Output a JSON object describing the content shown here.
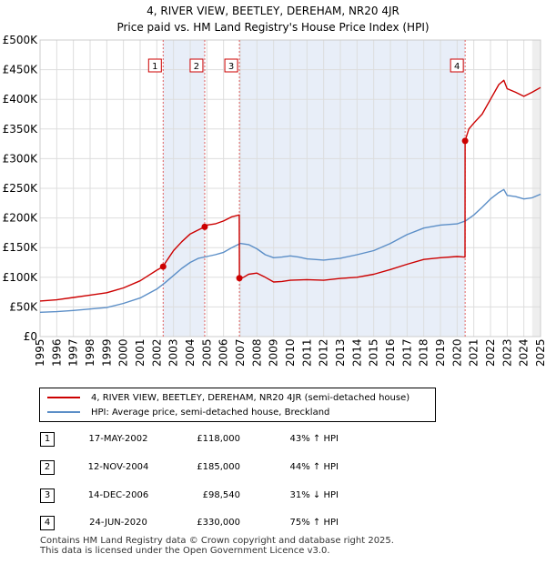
{
  "title_line1": "4, RIVER VIEW, BEETLEY, DEREHAM, NR20 4JR",
  "title_line2": "Price paid vs. HM Land Registry's House Price Index (HPI)",
  "colors": {
    "property": "#cc0000",
    "hpi": "#5b8ec7",
    "grid": "#dddddd",
    "shade": "#e8eef8",
    "vline": "#e06060"
  },
  "chart_data": {
    "type": "line",
    "title": "Price paid vs. HM Land Registry's House Price Index (HPI)",
    "xlim": [
      1995,
      2025
    ],
    "ylim": [
      0,
      500000
    ],
    "y_ticks": [
      0,
      50000,
      100000,
      150000,
      200000,
      250000,
      300000,
      350000,
      400000,
      450000,
      500000
    ],
    "y_tick_labels": [
      "£0",
      "£50K",
      "£100K",
      "£150K",
      "£200K",
      "£250K",
      "£300K",
      "£350K",
      "£400K",
      "£450K",
      "£500K"
    ],
    "x_ticks": [
      1995,
      1996,
      1997,
      1998,
      1999,
      2000,
      2001,
      2002,
      2003,
      2004,
      2005,
      2006,
      2007,
      2008,
      2009,
      2010,
      2011,
      2012,
      2013,
      2014,
      2015,
      2016,
      2017,
      2018,
      2019,
      2020,
      2021,
      2022,
      2023,
      2024,
      2025
    ],
    "x_tick_labels": [
      "1995",
      "1996",
      "1997",
      "1998",
      "1999",
      "2000",
      "2001",
      "2002",
      "2003",
      "2004",
      "2005",
      "2006",
      "2007",
      "2008",
      "2009",
      "2010",
      "2011",
      "2012",
      "2013",
      "2014",
      "2015",
      "2016",
      "2017",
      "2018",
      "2019",
      "2020",
      "2021",
      "2022",
      "2023",
      "2024",
      "2025"
    ],
    "series": [
      {
        "name": "4, RIVER VIEW, BEETLEY, DEREHAM, NR20 4JR (semi-detached house)",
        "x": [
          1995,
          1996,
          1997,
          1998,
          1999,
          2000,
          2001,
          2001.5,
          2002,
          2002.38,
          2002.5,
          2003,
          2003.5,
          2004,
          2004.5,
          2004.87,
          2005,
          2005.5,
          2006,
          2006.5,
          2006.94,
          2006.95,
          2007.2,
          2007.5,
          2008,
          2008.5,
          2009,
          2009.5,
          2010,
          2011,
          2012,
          2013,
          2014,
          2015,
          2016,
          2017,
          2018,
          2019,
          2020,
          2020.47,
          2020.48,
          2020.7,
          2021,
          2021.5,
          2022,
          2022.5,
          2022.8,
          2023,
          2023.5,
          2024,
          2024.5,
          2025
        ],
        "values": [
          60000,
          62000,
          66000,
          70000,
          74000,
          82000,
          94000,
          103000,
          112000,
          118000,
          124000,
          145000,
          160000,
          173000,
          180000,
          185000,
          188000,
          190000,
          195000,
          202000,
          205000,
          98540,
          100000,
          105000,
          107000,
          100000,
          92000,
          93000,
          95000,
          96000,
          95000,
          98000,
          100000,
          105000,
          113000,
          122000,
          130000,
          133000,
          135000,
          134000,
          330000,
          350000,
          360000,
          375000,
          400000,
          425000,
          432000,
          418000,
          412000,
          405000,
          412000,
          420000
        ]
      },
      {
        "name": "HPI: Average price, semi-detached house, Breckland",
        "x": [
          1995,
          1996,
          1997,
          1998,
          1999,
          2000,
          2001,
          2002,
          2002.5,
          2003,
          2003.5,
          2004,
          2004.5,
          2005,
          2005.5,
          2006,
          2006.5,
          2007,
          2007.5,
          2008,
          2008.5,
          2009,
          2009.5,
          2010,
          2010.5,
          2011,
          2012,
          2013,
          2014,
          2015,
          2016,
          2017,
          2018,
          2019,
          2020,
          2020.5,
          2021,
          2021.5,
          2022,
          2022.5,
          2022.8,
          2023,
          2023.5,
          2024,
          2024.5,
          2025
        ],
        "values": [
          41000,
          42000,
          44000,
          46500,
          49000,
          56000,
          65000,
          80000,
          91000,
          103000,
          115000,
          125000,
          132000,
          135000,
          138000,
          142000,
          150000,
          157000,
          155000,
          148000,
          138000,
          133000,
          134000,
          136000,
          134000,
          131000,
          129000,
          132000,
          138000,
          145000,
          157000,
          172000,
          183000,
          188000,
          190000,
          195000,
          205000,
          218000,
          232000,
          243000,
          248000,
          238000,
          236000,
          232000,
          234000,
          240000
        ]
      }
    ],
    "transactions": [
      {
        "num": "1",
        "date": "17-MAY-2002",
        "price": "£118,000",
        "hpi": "43% ↑ HPI",
        "x": 2002.38,
        "value": 118000
      },
      {
        "num": "2",
        "date": "12-NOV-2004",
        "price": "£185,000",
        "hpi": "44% ↑ HPI",
        "x": 2004.87,
        "value": 185000
      },
      {
        "num": "3",
        "date": "14-DEC-2006",
        "price": "£98,540",
        "hpi": "31% ↓ HPI",
        "x": 2006.95,
        "value": 98540
      },
      {
        "num": "4",
        "date": "24-JUN-2020",
        "price": "£330,000",
        "hpi": "75% ↑ HPI",
        "x": 2020.48,
        "value": 330000
      }
    ]
  },
  "legend": {
    "property_label": "4, RIVER VIEW, BEETLEY, DEREHAM, NR20 4JR (semi-detached house)",
    "hpi_label": "HPI: Average price, semi-detached house, Breckland"
  },
  "footer": {
    "line1": "Contains HM Land Registry data © Crown copyright and database right 2025.",
    "line2": "This data is licensed under the Open Government Licence v3.0."
  }
}
